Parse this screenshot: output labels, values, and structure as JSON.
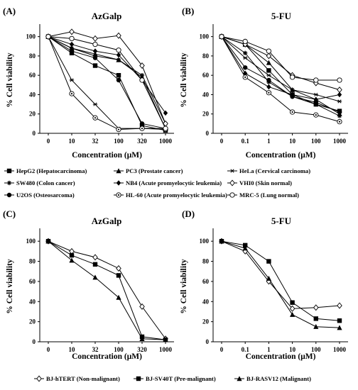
{
  "chart_data": [
    {
      "type": "line",
      "panel_label": "(A)",
      "title": "AzGalp",
      "xlabel": "Concentration (μM)",
      "ylabel": "% Cell viability",
      "x": [
        "0",
        "10",
        "32",
        "100",
        "320",
        "1000"
      ],
      "ylim": [
        0,
        110
      ],
      "yticks": [
        0,
        20,
        40,
        60,
        80,
        100
      ],
      "grid": false,
      "series": [
        {
          "name": "HepG2 (Hepatocarcinoma)",
          "marker": "square",
          "values": [
            100,
            83,
            70,
            60,
            8,
            3
          ]
        },
        {
          "name": "PC3 (Prostate cancer)",
          "marker": "triangle",
          "values": [
            100,
            88,
            82,
            76,
            58,
            5
          ]
        },
        {
          "name": "HeLa (Cervical carcinoma)",
          "marker": "asterisk",
          "values": [
            100,
            55,
            30,
            5,
            5,
            5
          ]
        },
        {
          "name": "SW480 (Colon cancer)",
          "marker": "star",
          "values": [
            100,
            88,
            80,
            76,
            60,
            10
          ]
        },
        {
          "name": "NB4 (Acute promyelocytic leukemia)",
          "marker": "diamond",
          "values": [
            100,
            92,
            85,
            81,
            55,
            21
          ]
        },
        {
          "name": "VHI0 (Skin normal)",
          "marker": "open-diamond",
          "values": [
            100,
            105,
            98,
            101,
            70,
            10
          ]
        },
        {
          "name": "U2OS (Osteosarcoma)",
          "marker": "circle",
          "values": [
            100,
            85,
            78,
            55,
            10,
            5
          ]
        },
        {
          "name": "HL-60 (Acute promyelocytic leukemia)",
          "marker": "open-circle-dot",
          "values": [
            100,
            41,
            16,
            4,
            5,
            4
          ]
        },
        {
          "name": "MRC-5 (Lung normal)",
          "marker": "open-circle",
          "values": [
            100,
            98,
            92,
            86,
            55,
            5
          ]
        }
      ]
    },
    {
      "type": "line",
      "panel_label": "(B)",
      "title": "5-FU",
      "xlabel": "Concentration (μM)",
      "ylabel": "% Cell viability",
      "x": [
        "0",
        "0.1",
        "1",
        "10",
        "100",
        "1000"
      ],
      "ylim": [
        0,
        110
      ],
      "yticks": [
        0,
        20,
        40,
        60,
        80,
        100
      ],
      "grid": false,
      "series": [
        {
          "name": "HepG2 (Hepatocarcinoma)",
          "marker": "square",
          "values": [
            100,
            92,
            65,
            40,
            30,
            23
          ]
        },
        {
          "name": "PC3 (Prostate cancer)",
          "marker": "triangle",
          "values": [
            100,
            92,
            73,
            45,
            35,
            20
          ]
        },
        {
          "name": "HeLa (Cervical carcinoma)",
          "marker": "asterisk",
          "values": [
            100,
            78,
            60,
            45,
            40,
            33
          ]
        },
        {
          "name": "SW480 (Colon cancer)",
          "marker": "star",
          "values": [
            100,
            83,
            53,
            38,
            30,
            18
          ]
        },
        {
          "name": "NB4 (Acute promyelocytic leukemia)",
          "marker": "diamond",
          "values": [
            100,
            62,
            48,
            40,
            35,
            40
          ]
        },
        {
          "name": "VHI0 (Skin normal)",
          "marker": "open-diamond",
          "values": [
            100,
            92,
            80,
            60,
            52,
            45
          ]
        },
        {
          "name": "U2OS (Osteosarcoma)",
          "marker": "circle",
          "values": [
            100,
            68,
            55,
            38,
            32,
            22
          ]
        },
        {
          "name": "HL-60 (Acute promyelocytic leukemia)",
          "marker": "open-circle-dot",
          "values": [
            100,
            58,
            42,
            22,
            19,
            12
          ]
        },
        {
          "name": "MRC-5 (Lung normal)",
          "marker": "open-circle",
          "values": [
            100,
            95,
            85,
            58,
            55,
            55
          ]
        }
      ]
    },
    {
      "type": "line",
      "panel_label": "(C)",
      "title": "AzGalp",
      "xlabel": "Concentration (μM)",
      "ylabel": "% Cell viability",
      "x": [
        "0",
        "10",
        "32",
        "100",
        "320",
        "1000"
      ],
      "ylim": [
        0,
        110
      ],
      "yticks": [
        0,
        20,
        40,
        60,
        80,
        100
      ],
      "grid": false,
      "series": [
        {
          "name": "BJ-hTERT (Non-malignant)",
          "marker": "open-diamond",
          "values": [
            100,
            90,
            84,
            73,
            35,
            3
          ]
        },
        {
          "name": "BJ-SV40T (Pre-malignant)",
          "marker": "square",
          "values": [
            100,
            86,
            77,
            66,
            5,
            2
          ]
        },
        {
          "name": "BJ-RASV12 (Malignant)",
          "marker": "triangle",
          "values": [
            100,
            81,
            64,
            44,
            3,
            2
          ]
        }
      ]
    },
    {
      "type": "line",
      "panel_label": "(D)",
      "title": "5-FU",
      "xlabel": "Concentration (μM)",
      "ylabel": "% Cell viability",
      "x": [
        "0",
        "0.1",
        "1",
        "10",
        "100",
        "1000"
      ],
      "ylim": [
        0,
        110
      ],
      "yticks": [
        0,
        20,
        40,
        60,
        80,
        100
      ],
      "grid": false,
      "series": [
        {
          "name": "BJ-hTERT (Non-malignant)",
          "marker": "open-diamond",
          "values": [
            100,
            90,
            60,
            33,
            34,
            36
          ]
        },
        {
          "name": "BJ-SV40T (Pre-malignant)",
          "marker": "square",
          "values": [
            100,
            96,
            80,
            39,
            23,
            21
          ]
        },
        {
          "name": "BJ-RASV12 (Malignant)",
          "marker": "triangle",
          "values": [
            100,
            93,
            63,
            27,
            15,
            14
          ]
        }
      ]
    }
  ],
  "legend_top": {
    "rows": [
      [
        0,
        1,
        2
      ],
      [
        3,
        4,
        5
      ],
      [
        6,
        7,
        8
      ]
    ]
  },
  "legend_bottom": {
    "rows": [
      [
        0,
        1,
        2
      ]
    ]
  }
}
